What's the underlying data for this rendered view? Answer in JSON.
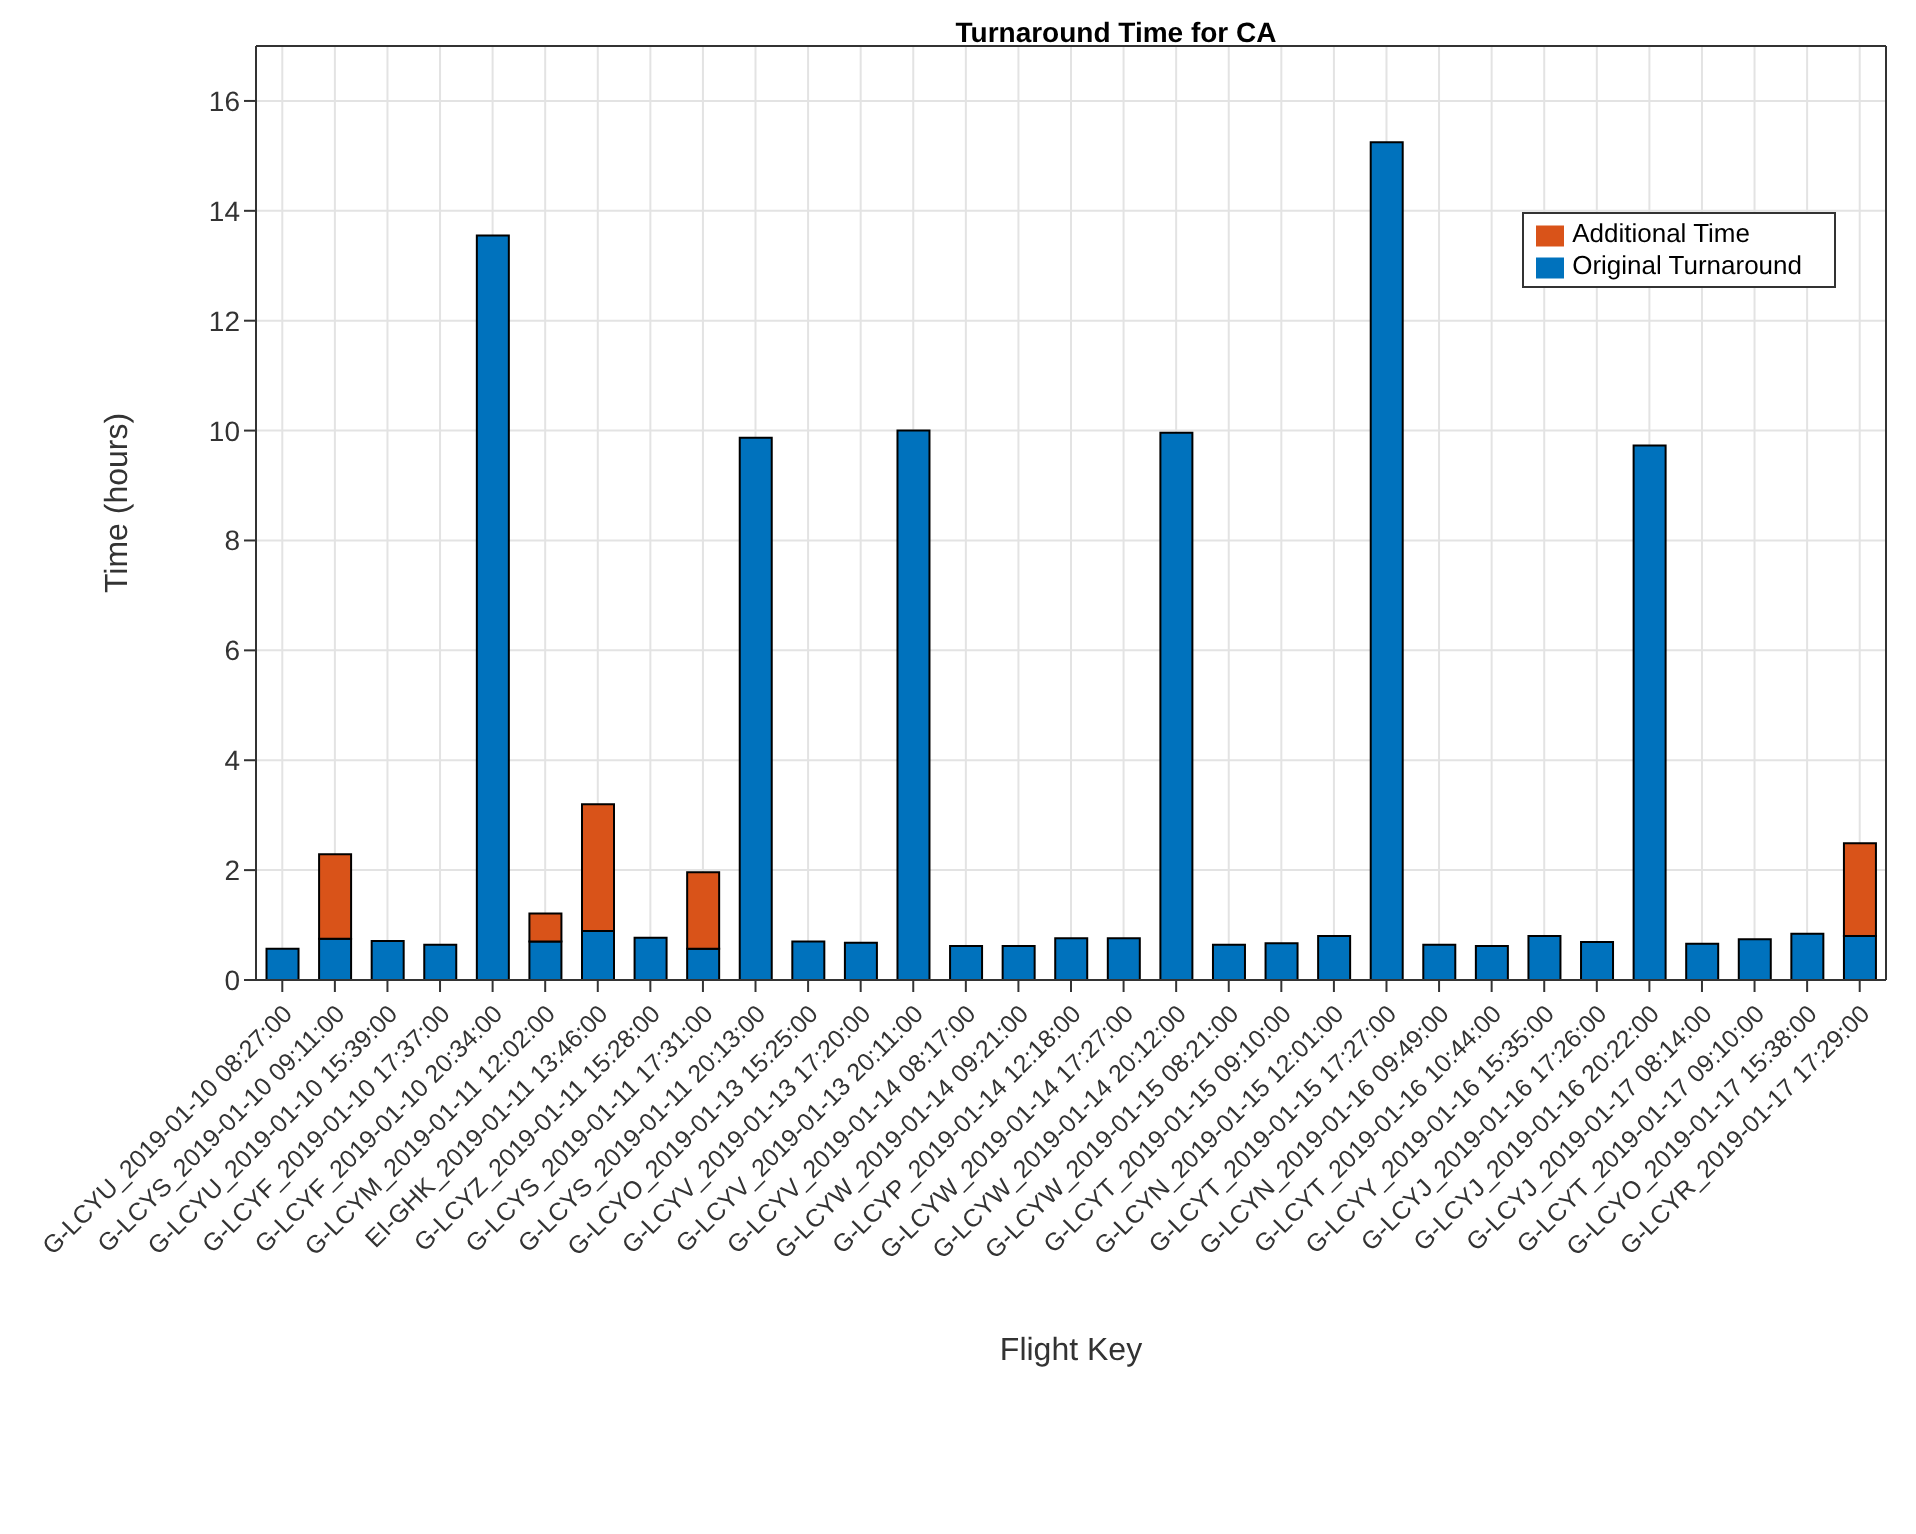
{
  "chart_data": {
    "type": "bar",
    "title": "Turnaround Time for CA",
    "xlabel": "Flight Key",
    "ylabel": "Time (hours)",
    "categories": [
      "G-LCYU_2019-01-10 08:27:00",
      "G-LCYS_2019-01-10 09:11:00",
      "G-LCYU_2019-01-10 15:39:00",
      "G-LCYF_2019-01-10 17:37:00",
      "G-LCYF_2019-01-10 20:34:00",
      "G-LCYM_2019-01-11 12:02:00",
      "EI-GHK_2019-01-11 13:46:00",
      "G-LCYZ_2019-01-11 15:28:00",
      "G-LCYS_2019-01-11 17:31:00",
      "G-LCYS_2019-01-11 20:13:00",
      "G-LCYO_2019-01-13 15:25:00",
      "G-LCYV_2019-01-13 17:20:00",
      "G-LCYV_2019-01-13 20:11:00",
      "G-LCYV_2019-01-14 08:17:00",
      "G-LCYW_2019-01-14 09:21:00",
      "G-LCYP_2019-01-14 12:18:00",
      "G-LCYW_2019-01-14 17:27:00",
      "G-LCYW_2019-01-14 20:12:00",
      "G-LCYW_2019-01-15 08:21:00",
      "G-LCYT_2019-01-15 09:10:00",
      "G-LCYN_2019-01-15 12:01:00",
      "G-LCYT_2019-01-15 17:27:00",
      "G-LCYN_2019-01-16 09:49:00",
      "G-LCYT_2019-01-16 10:44:00",
      "G-LCYY_2019-01-16 15:35:00",
      "G-LCYJ_2019-01-16 17:26:00",
      "G-LCYJ_2019-01-16 20:22:00",
      "G-LCYJ_2019-01-17 08:14:00",
      "G-LCYT_2019-01-17 09:10:00",
      "G-LCYO_2019-01-17 15:38:00",
      "G-LCYR_2019-01-17 17:29:00"
    ],
    "series": [
      {
        "name": "Original Turnaround",
        "color": "#0072bd",
        "values": [
          0.57,
          0.75,
          0.71,
          0.64,
          13.55,
          0.7,
          0.89,
          0.77,
          0.57,
          9.87,
          0.7,
          0.68,
          10.0,
          0.62,
          0.62,
          0.76,
          0.76,
          9.96,
          0.64,
          0.67,
          0.8,
          15.25,
          0.64,
          0.62,
          0.8,
          0.69,
          9.73,
          0.66,
          0.74,
          0.84,
          0.8
        ]
      },
      {
        "name": "Additional Time",
        "color": "#d95319",
        "values": [
          null,
          1.54,
          null,
          null,
          null,
          0.51,
          2.31,
          null,
          1.39,
          null,
          null,
          null,
          null,
          null,
          null,
          null,
          null,
          null,
          null,
          null,
          null,
          null,
          null,
          null,
          null,
          null,
          null,
          null,
          null,
          null,
          1.69
        ]
      }
    ],
    "stacked": true,
    "ylim": [
      0,
      17
    ],
    "yticks": [
      0,
      2,
      4,
      6,
      8,
      10,
      12,
      14,
      16
    ],
    "grid": true,
    "legend": "top right"
  }
}
